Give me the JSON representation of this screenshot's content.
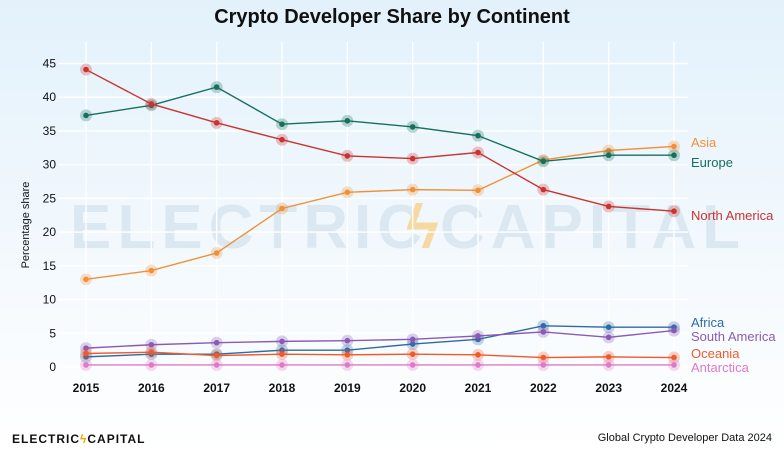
{
  "chart_data": {
    "type": "line",
    "title": "Crypto Developer Share by Continent",
    "xlabel": "",
    "ylabel": "Percentage share",
    "x": [
      2015,
      2016,
      2017,
      2018,
      2019,
      2020,
      2021,
      2022,
      2023,
      2024
    ],
    "ylim": [
      0,
      47
    ],
    "yticks": [
      0,
      5,
      10,
      15,
      20,
      25,
      30,
      35,
      40,
      45
    ],
    "grid": true,
    "series": [
      {
        "name": "Asia",
        "color": "#f0913a",
        "values": [
          13.0,
          14.3,
          16.9,
          23.5,
          25.9,
          26.3,
          26.2,
          30.7,
          32.1,
          32.7
        ]
      },
      {
        "name": "Europe",
        "color": "#17705f",
        "values": [
          37.3,
          38.8,
          41.5,
          36.0,
          36.5,
          35.6,
          34.3,
          30.5,
          31.4,
          31.4
        ]
      },
      {
        "name": "North America",
        "color": "#c9342f",
        "values": [
          44.1,
          39.0,
          36.2,
          33.7,
          31.3,
          30.9,
          31.8,
          26.3,
          23.8,
          23.1
        ]
      },
      {
        "name": "Africa",
        "color": "#2e6aa6",
        "values": [
          1.5,
          1.9,
          1.9,
          2.5,
          2.5,
          3.4,
          4.1,
          6.1,
          5.9,
          5.9
        ]
      },
      {
        "name": "South America",
        "color": "#8a5bb5",
        "values": [
          2.8,
          3.3,
          3.6,
          3.8,
          3.9,
          4.1,
          4.6,
          5.2,
          4.4,
          5.4
        ]
      },
      {
        "name": "Oceania",
        "color": "#ef5a2d",
        "values": [
          2.0,
          2.2,
          1.7,
          1.9,
          1.8,
          1.9,
          1.8,
          1.4,
          1.5,
          1.4
        ]
      },
      {
        "name": "Antarctica",
        "color": "#e07ac8",
        "values": [
          0.3,
          0.3,
          0.3,
          0.3,
          0.3,
          0.3,
          0.3,
          0.3,
          0.3,
          0.3
        ]
      }
    ]
  },
  "watermark": {
    "part1": "ELECTRIC",
    "part2": "CAPITAL"
  },
  "footer": {
    "brand_left": "ELECTRIC",
    "brand_right": "CAPITAL",
    "source": "Global Crypto Developer Data 2024"
  },
  "colors": {
    "bg_top": "#e3f1fb",
    "bg_bottom": "#ffffff",
    "grid": "#ffffff",
    "watermark": "#dde8f0",
    "bolt": "#f4a300"
  }
}
